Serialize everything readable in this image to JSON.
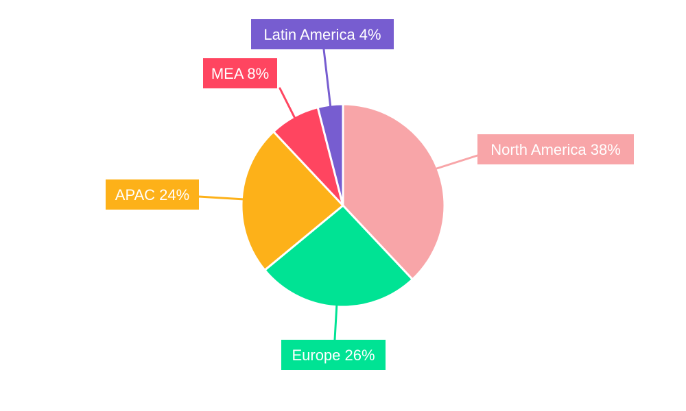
{
  "chart_data": {
    "type": "pie",
    "title": "",
    "start_angle_deg": 0,
    "direction": "clockwise",
    "slices": [
      {
        "label": "North America",
        "value": 38,
        "display": "North America 38%",
        "color": "#f8a5a8"
      },
      {
        "label": "Europe",
        "value": 26,
        "display": "Europe 26%",
        "color": "#00e394"
      },
      {
        "label": "APAC",
        "value": 24,
        "display": "APAC 24%",
        "color": "#fdb119"
      },
      {
        "label": "MEA",
        "value": 8,
        "display": "MEA 8%",
        "color": "#ff4560"
      },
      {
        "label": "Latin America",
        "value": 4,
        "display": "Latin America 4%",
        "color": "#775dd0"
      }
    ],
    "label_text_color": "#ffffff",
    "slice_border_color": "#ffffff"
  }
}
